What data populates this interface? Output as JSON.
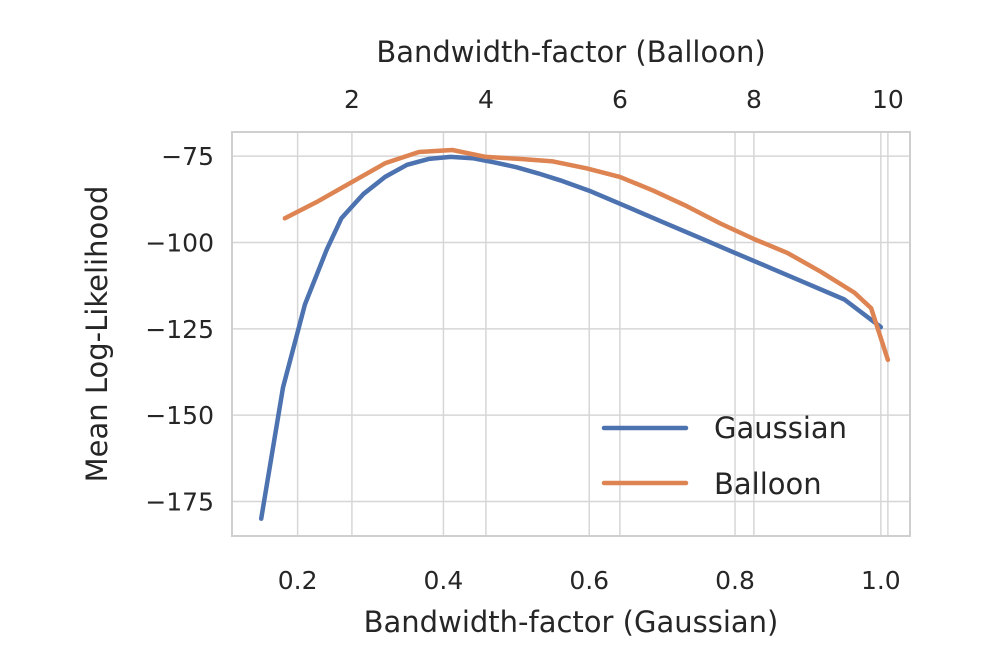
{
  "chart_data": {
    "type": "line",
    "xlabel": "Bandwidth-factor (Gaussian)",
    "x2label": "Bandwidth-factor (Balloon)",
    "ylabel": "Mean Log-Likelihood",
    "xlim": [
      0.11,
      1.04
    ],
    "x2lim": [
      0.21,
      10.33
    ],
    "ylim": [
      -185,
      -68
    ],
    "xticks": [
      0.2,
      0.4,
      0.6,
      0.8,
      1.0
    ],
    "xtick_labels": [
      "0.2",
      "0.4",
      "0.6",
      "0.8",
      "1.0"
    ],
    "x2ticks": [
      2,
      4,
      6,
      8,
      10
    ],
    "x2tick_labels": [
      "2",
      "4",
      "6",
      "8",
      "10"
    ],
    "yticks": [
      -75,
      -100,
      -125,
      -150,
      -175
    ],
    "ytick_labels": [
      "−75",
      "−100",
      "−125",
      "−150",
      "−175"
    ],
    "grid": true,
    "legend_position": "lower-right",
    "series": [
      {
        "name": "Gaussian",
        "color": "#4c72b0",
        "axis": "bottom",
        "x": [
          0.15,
          0.18,
          0.21,
          0.24,
          0.26,
          0.29,
          0.32,
          0.35,
          0.38,
          0.41,
          0.44,
          0.47,
          0.5,
          0.53,
          0.56,
          0.6,
          0.65,
          0.7,
          0.75,
          0.8,
          0.85,
          0.9,
          0.95,
          1.0
        ],
        "values": [
          -180,
          -142,
          -118,
          -102,
          -93,
          -86,
          -81,
          -77.5,
          -75.8,
          -75.2,
          -75.6,
          -76.8,
          -78.2,
          -80,
          -82,
          -85,
          -89.5,
          -94,
          -98.5,
          -103,
          -107.5,
          -112,
          -116.5,
          -124.5
        ]
      },
      {
        "name": "Balloon",
        "color": "#dd8452",
        "axis": "top",
        "x": [
          1,
          1.5,
          2,
          2.5,
          3,
          3.5,
          4,
          4.5,
          5,
          5.5,
          6,
          6.5,
          7,
          7.5,
          8,
          8.5,
          9,
          9.5,
          9.75,
          10
        ],
        "values": [
          -93,
          -88,
          -82.5,
          -77,
          -73.8,
          -73.2,
          -75.2,
          -75.8,
          -76.5,
          -78.5,
          -81,
          -85,
          -89.5,
          -94.5,
          -99,
          -103,
          -108.5,
          -114.5,
          -119,
          -134
        ]
      }
    ]
  }
}
